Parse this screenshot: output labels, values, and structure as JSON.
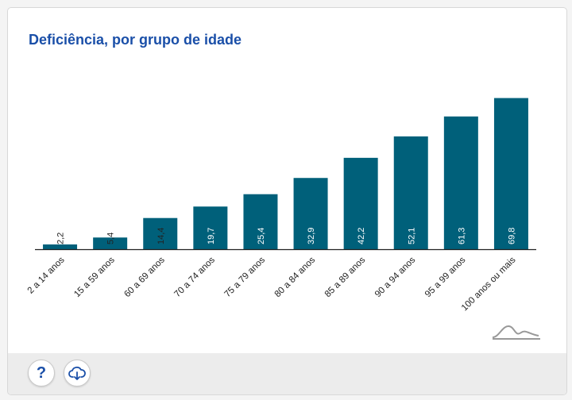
{
  "title": "Deficiência, por grupo de idade",
  "colors": {
    "bar": "#00607a",
    "title": "#1a4fa8",
    "axis": "#222222",
    "icon": "#1a4fa8",
    "logo": "#999999"
  },
  "footer": {
    "help_symbol": "?",
    "help_icon": "question-mark-icon",
    "download_icon": "cloud-download-icon"
  },
  "chart_data": {
    "type": "bar",
    "title": "Deficiência, por grupo de idade",
    "categories": [
      "2 a 14 anos",
      "15 a 59 anos",
      "60 a 69 anos",
      "70 a 74 anos",
      "75 a 79 anos",
      "80 a 84 anos",
      "85 a 89 anos",
      "90 a 94 anos",
      "95 a 99 anos",
      "100 anos ou mais"
    ],
    "values": [
      2.2,
      5.4,
      14.4,
      19.7,
      25.4,
      32.9,
      42.2,
      52.1,
      61.3,
      69.8
    ],
    "labels": [
      "2,2",
      "5,4",
      "14,4",
      "19,7",
      "25,4",
      "32,9",
      "42,2",
      "52,1",
      "61,3",
      "69,8"
    ],
    "xlabel": "",
    "ylabel": "",
    "ylim": [
      0,
      70
    ],
    "grid": false,
    "legend": "none"
  }
}
